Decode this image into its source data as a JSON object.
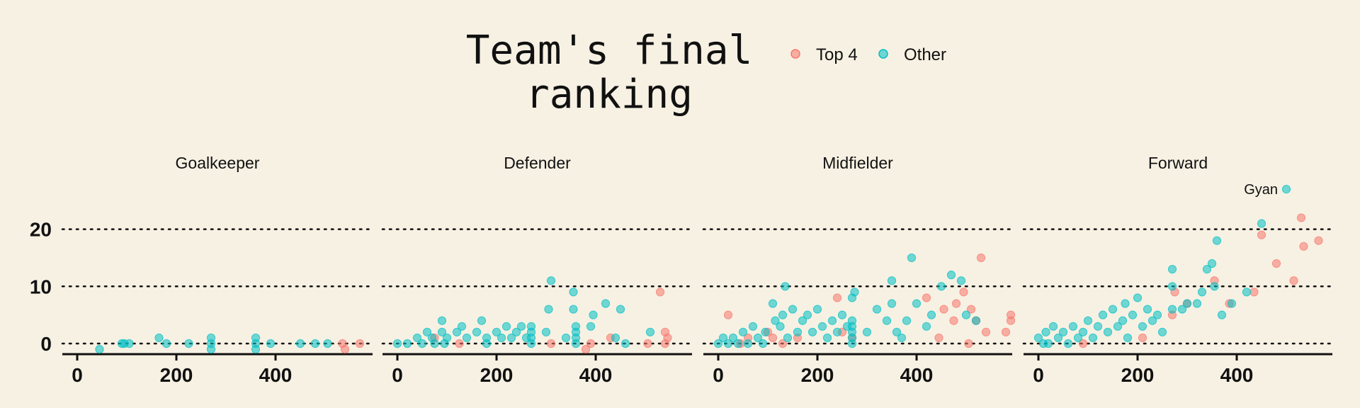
{
  "chart_data": {
    "type": "scatter",
    "title": "Team's final\nranking",
    "legend": {
      "position": "top",
      "entries": [
        {
          "name": "Top 4",
          "color": "#f8766d"
        },
        {
          "name": "Other",
          "color": "#00bfc4"
        }
      ]
    },
    "xlim": [
      -30,
      590
    ],
    "ylim": [
      -2,
      27
    ],
    "x_ticks": [
      0,
      200,
      400
    ],
    "y_ticks": [
      0,
      10,
      20
    ],
    "grid": "horizontal dotted",
    "panels": [
      {
        "title": "Goalkeeper",
        "series": [
          {
            "name": "Top 4",
            "points": [
              [
                535,
                0
              ],
              [
                540,
                -1
              ],
              [
                570,
                0
              ]
            ]
          },
          {
            "name": "Other",
            "points": [
              [
                45,
                -1
              ],
              [
                90,
                0
              ],
              [
                95,
                0
              ],
              [
                105,
                0
              ],
              [
                165,
                1
              ],
              [
                180,
                0
              ],
              [
                225,
                0
              ],
              [
                270,
                0
              ],
              [
                270,
                -1
              ],
              [
                270,
                1
              ],
              [
                360,
                0
              ],
              [
                360,
                -1
              ],
              [
                360,
                1
              ],
              [
                390,
                0
              ],
              [
                450,
                0
              ],
              [
                480,
                0
              ],
              [
                505,
                0
              ]
            ]
          }
        ]
      },
      {
        "title": "Defender",
        "series": [
          {
            "name": "Top 4",
            "points": [
              [
                75,
                1
              ],
              [
                125,
                0
              ],
              [
                310,
                0
              ],
              [
                390,
                0
              ],
              [
                430,
                1
              ],
              [
                505,
                0
              ],
              [
                530,
                9
              ],
              [
                540,
                2
              ],
              [
                545,
                1
              ],
              [
                540,
                0
              ],
              [
                380,
                -1
              ]
            ]
          },
          {
            "name": "Other",
            "points": [
              [
                0,
                0
              ],
              [
                20,
                0
              ],
              [
                40,
                1
              ],
              [
                50,
                0
              ],
              [
                60,
                2
              ],
              [
                70,
                1
              ],
              [
                75,
                0
              ],
              [
                90,
                2
              ],
              [
                90,
                4
              ],
              [
                95,
                0
              ],
              [
                100,
                1
              ],
              [
                120,
                2
              ],
              [
                130,
                3
              ],
              [
                140,
                1
              ],
              [
                160,
                2
              ],
              [
                170,
                4
              ],
              [
                180,
                1
              ],
              [
                180,
                0
              ],
              [
                200,
                2
              ],
              [
                210,
                1
              ],
              [
                220,
                3
              ],
              [
                230,
                1
              ],
              [
                240,
                2
              ],
              [
                250,
                3
              ],
              [
                260,
                1
              ],
              [
                270,
                0
              ],
              [
                270,
                1
              ],
              [
                270,
                2
              ],
              [
                270,
                3
              ],
              [
                300,
                2
              ],
              [
                305,
                6
              ],
              [
                310,
                11
              ],
              [
                340,
                1
              ],
              [
                355,
                9
              ],
              [
                355,
                6
              ],
              [
                360,
                3
              ],
              [
                360,
                0
              ],
              [
                360,
                1
              ],
              [
                360,
                2
              ],
              [
                390,
                3
              ],
              [
                395,
                5
              ],
              [
                420,
                7
              ],
              [
                440,
                1
              ],
              [
                450,
                6
              ],
              [
                460,
                0
              ],
              [
                510,
                2
              ]
            ]
          }
        ]
      },
      {
        "title": "Midfielder",
        "series": [
          {
            "name": "Top 4",
            "points": [
              [
                20,
                5
              ],
              [
                45,
                0
              ],
              [
                60,
                1
              ],
              [
                100,
                2
              ],
              [
                110,
                1
              ],
              [
                130,
                0
              ],
              [
                160,
                1
              ],
              [
                240,
                8
              ],
              [
                250,
                2
              ],
              [
                270,
                1
              ],
              [
                420,
                8
              ],
              [
                445,
                1
              ],
              [
                455,
                6
              ],
              [
                480,
                7
              ],
              [
                495,
                9
              ],
              [
                505,
                0
              ],
              [
                510,
                6
              ],
              [
                520,
                4
              ],
              [
                530,
                15
              ],
              [
                540,
                2
              ],
              [
                590,
                5
              ],
              [
                590,
                4
              ],
              [
                580,
                2
              ],
              [
                475,
                4
              ]
            ]
          },
          {
            "name": "Other",
            "points": [
              [
                0,
                0
              ],
              [
                10,
                1
              ],
              [
                20,
                0
              ],
              [
                30,
                1
              ],
              [
                40,
                0
              ],
              [
                50,
                2
              ],
              [
                60,
                0
              ],
              [
                70,
                3
              ],
              [
                80,
                1
              ],
              [
                90,
                0
              ],
              [
                95,
                2
              ],
              [
                110,
                7
              ],
              [
                115,
                4
              ],
              [
                125,
                3
              ],
              [
                130,
                5
              ],
              [
                135,
                10
              ],
              [
                140,
                1
              ],
              [
                150,
                6
              ],
              [
                160,
                2
              ],
              [
                170,
                4
              ],
              [
                180,
                5
              ],
              [
                190,
                2
              ],
              [
                200,
                6
              ],
              [
                210,
                3
              ],
              [
                220,
                1
              ],
              [
                230,
                4
              ],
              [
                240,
                2
              ],
              [
                250,
                5
              ],
              [
                260,
                3
              ],
              [
                270,
                8
              ],
              [
                270,
                4
              ],
              [
                270,
                0
              ],
              [
                270,
                1
              ],
              [
                270,
                2
              ],
              [
                270,
                3
              ],
              [
                275,
                9
              ],
              [
                300,
                2
              ],
              [
                320,
                6
              ],
              [
                340,
                4
              ],
              [
                350,
                11
              ],
              [
                350,
                7
              ],
              [
                360,
                2
              ],
              [
                370,
                1
              ],
              [
                380,
                4
              ],
              [
                390,
                15
              ],
              [
                400,
                7
              ],
              [
                420,
                3
              ],
              [
                430,
                5
              ],
              [
                450,
                10
              ],
              [
                470,
                12
              ],
              [
                490,
                11
              ],
              [
                500,
                5
              ],
              [
                520,
                4
              ]
            ]
          }
        ]
      },
      {
        "title": "Forward",
        "series": [
          {
            "name": "Top 4",
            "points": [
              [
                90,
                0
              ],
              [
                210,
                1
              ],
              [
                270,
                5
              ],
              [
                275,
                9
              ],
              [
                300,
                7
              ],
              [
                355,
                11
              ],
              [
                385,
                7
              ],
              [
                435,
                9
              ],
              [
                450,
                19
              ],
              [
                480,
                14
              ],
              [
                515,
                11
              ],
              [
                530,
                22
              ],
              [
                535,
                17
              ],
              [
                565,
                18
              ]
            ]
          },
          {
            "name": "Other",
            "points": [
              [
                0,
                1
              ],
              [
                10,
                0
              ],
              [
                15,
                2
              ],
              [
                20,
                0
              ],
              [
                30,
                3
              ],
              [
                40,
                1
              ],
              [
                50,
                2
              ],
              [
                60,
                0
              ],
              [
                70,
                3
              ],
              [
                80,
                1
              ],
              [
                90,
                2
              ],
              [
                100,
                4
              ],
              [
                110,
                1
              ],
              [
                120,
                3
              ],
              [
                130,
                5
              ],
              [
                140,
                2
              ],
              [
                150,
                6
              ],
              [
                160,
                3
              ],
              [
                170,
                4
              ],
              [
                175,
                7
              ],
              [
                180,
                1
              ],
              [
                190,
                5
              ],
              [
                200,
                8
              ],
              [
                210,
                3
              ],
              [
                220,
                6
              ],
              [
                230,
                4
              ],
              [
                240,
                5
              ],
              [
                250,
                2
              ],
              [
                270,
                13
              ],
              [
                270,
                10
              ],
              [
                270,
                6
              ],
              [
                290,
                6
              ],
              [
                300,
                7
              ],
              [
                320,
                7
              ],
              [
                330,
                9
              ],
              [
                340,
                13
              ],
              [
                350,
                14
              ],
              [
                355,
                10
              ],
              [
                360,
                18
              ],
              [
                370,
                5
              ],
              [
                390,
                7
              ],
              [
                420,
                9
              ],
              [
                450,
                21
              ],
              [
                500,
                27
              ]
            ]
          }
        ]
      }
    ],
    "annotations": [
      {
        "panel": "Forward",
        "text": "Gyan",
        "x": 500,
        "y": 27
      }
    ]
  }
}
